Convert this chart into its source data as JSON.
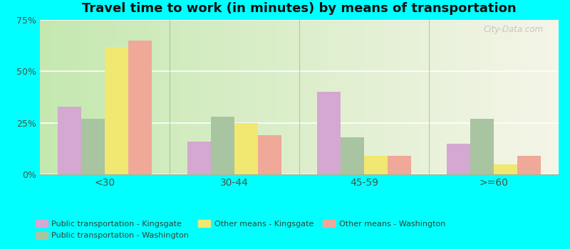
{
  "title": "Travel time to work (in minutes) by means of transportation",
  "categories": [
    "<30",
    "30-44",
    "45-59",
    ">=60"
  ],
  "series": [
    {
      "label": "Public transportation - Kingsgate",
      "color": "#d4a8d0",
      "values": [
        33,
        16,
        40,
        15
      ]
    },
    {
      "label": "Public transportation - Washington",
      "color": "#a8c4a0",
      "values": [
        27,
        28,
        18,
        27
      ]
    },
    {
      "label": "Other means - Kingsgate",
      "color": "#f0e870",
      "values": [
        62,
        25,
        9,
        5
      ]
    },
    {
      "label": "Other means - Washington",
      "color": "#f0a898",
      "values": [
        65,
        19,
        9,
        9
      ]
    }
  ],
  "ylim": [
    0,
    75
  ],
  "yticks": [
    0,
    25,
    50,
    75
  ],
  "ytick_labels": [
    "0%",
    "25%",
    "50%",
    "75%"
  ],
  "bg_color_left": "#c5e8b0",
  "bg_color_right": "#f5f5e8",
  "outer_background": "#00ffff",
  "title_fontsize": 13,
  "bar_width": 0.18,
  "watermark": "City-Data.com",
  "legend_order": [
    0,
    1,
    2,
    3
  ],
  "legend_ncol": 3
}
